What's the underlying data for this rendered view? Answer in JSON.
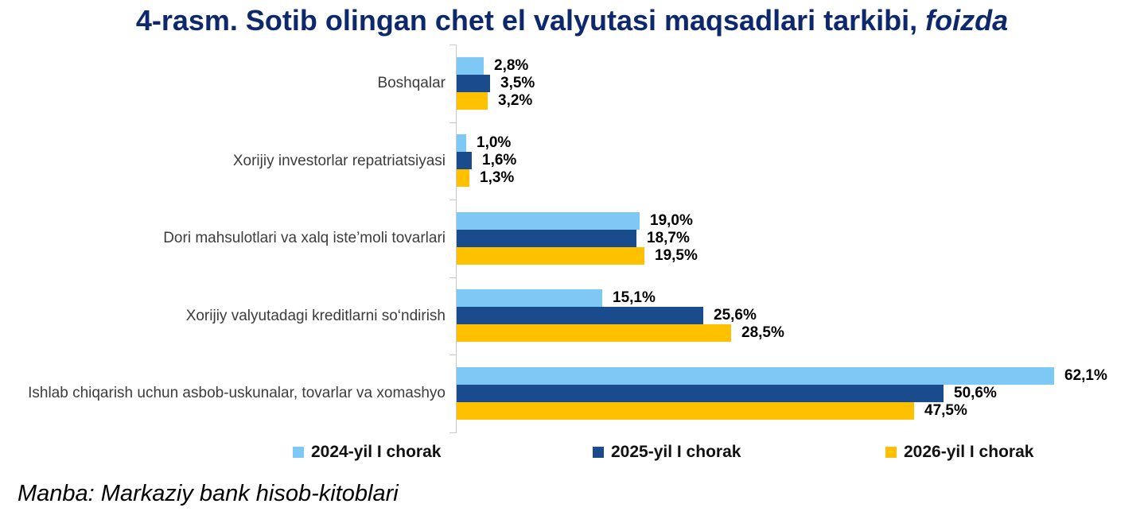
{
  "title": {
    "main": "4-rasm. Sotib olingan chet el valyutasi maqsadlari tarkibi,",
    "italic_suffix": "foizda"
  },
  "source": {
    "text": "Manba: Markaziy bank hisob-kitoblari"
  },
  "colors": {
    "title_navy": "#0d286c",
    "axis_gray": "#c9c9c9",
    "series_2024": "#7ec8f5",
    "series_2025": "#1a4b8c",
    "series_2026": "#ffc000"
  },
  "chart_data": {
    "type": "bar",
    "orientation": "horizontal",
    "unit": "percent",
    "decimal_separator": ",",
    "xlim": [
      0,
      63
    ],
    "grid": false,
    "legend_position": "bottom",
    "categories": [
      "Boshqalar",
      "Xorijiy investorlar repatriatsiyasi",
      "Dori mahsulotlari va xalq iste’moli tovarlari",
      "Xorijiy valyutadagi kreditlarni so‘ndirish",
      "Ishlab chiqarish uchun asbob-uskunalar, tovarlar va xomashyo"
    ],
    "series": [
      {
        "name": "2024-yil I chorak",
        "color": "#7ec8f5",
        "values": [
          2.8,
          1.0,
          19.0,
          15.1,
          62.1
        ],
        "labels": [
          "2,8%",
          "1,0%",
          "19,0%",
          "15,1%",
          "62,1%"
        ]
      },
      {
        "name": "2025-yil I chorak",
        "color": "#1a4b8c",
        "values": [
          3.5,
          1.6,
          18.7,
          25.6,
          50.6
        ],
        "labels": [
          "3,5%",
          "1,6%",
          "18,7%",
          "25,6%",
          "50,6%"
        ]
      },
      {
        "name": "2026-yil I chorak",
        "color": "#ffc000",
        "values": [
          3.2,
          1.3,
          19.5,
          28.5,
          47.5
        ],
        "labels": [
          "3,2%",
          "1,3%",
          "19,5%",
          "28,5%",
          "47,5%"
        ]
      }
    ]
  }
}
